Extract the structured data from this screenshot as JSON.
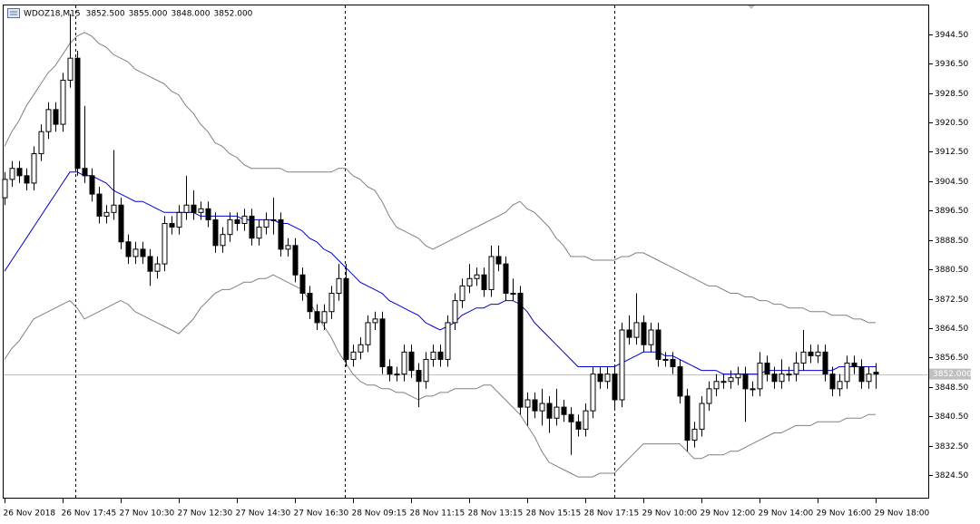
{
  "chart_data": {
    "type": "candlestick",
    "title": "WDOZ18,M15",
    "header_labels": [
      "3852.500",
      "3855.000",
      "3848.000",
      "3852.000"
    ],
    "up_color": "#ffffff",
    "down_color": "#000000",
    "categories": [
      "26 Nov 2018",
      null,
      null,
      null,
      null,
      null,
      null,
      null,
      "26 Nov 17:45",
      null,
      null,
      null,
      null,
      null,
      null,
      null,
      "27 Nov 10:30",
      null,
      null,
      null,
      null,
      null,
      null,
      null,
      "27 Nov 12:30",
      null,
      null,
      null,
      null,
      null,
      null,
      null,
      "27 Nov 14:30",
      null,
      null,
      null,
      null,
      null,
      null,
      null,
      "27 Nov 16:30",
      null,
      null,
      null,
      null,
      null,
      null,
      null,
      "28 Nov 09:15",
      null,
      null,
      null,
      null,
      null,
      null,
      null,
      "28 Nov 11:15",
      null,
      null,
      null,
      null,
      null,
      null,
      null,
      "28 Nov 13:15",
      null,
      null,
      null,
      null,
      null,
      null,
      null,
      "28 Nov 15:15",
      null,
      null,
      null,
      null,
      null,
      null,
      null,
      "28 Nov 17:15",
      null,
      null,
      null,
      null,
      null,
      null,
      null,
      "29 Nov 10:00",
      null,
      null,
      null,
      null,
      null,
      null,
      null,
      "29 Nov 12:00",
      null,
      null,
      null,
      null,
      null,
      null,
      null,
      "29 Nov 14:00",
      null,
      null,
      null,
      null,
      null,
      null,
      null,
      "29 Nov 16:00",
      null,
      null,
      null,
      null,
      null,
      null,
      null,
      "29 Nov 18:00"
    ],
    "open": [
      3900,
      3905,
      3908,
      3906,
      3904,
      3912,
      3918,
      3924,
      3920,
      3932,
      3938,
      3908,
      3906,
      3901,
      3895,
      3896,
      3898,
      3888,
      3884,
      3886,
      3884,
      3880,
      3882,
      3893,
      3892,
      3896,
      3898,
      3896,
      3897,
      3894,
      3887,
      3890,
      3894,
      3893,
      3895,
      3889,
      3892,
      3894,
      3894,
      3886,
      3887,
      3879,
      3874,
      3869,
      3866,
      3869,
      3874,
      3878,
      3856,
      3858,
      3860,
      3866,
      3867,
      3854,
      3852,
      3852,
      3858,
      3853,
      3850,
      3856,
      3858,
      3856,
      3866,
      3872,
      3876,
      3878,
      3879,
      3875,
      3884,
      3882,
      3874,
      3874,
      3843,
      3845,
      3842,
      3844,
      3840,
      3843,
      3841,
      3839,
      3837,
      3842,
      3852,
      3850,
      3852,
      3845,
      3864,
      3862,
      3866,
      3860,
      3864,
      3856,
      3856,
      3854,
      3846,
      3834,
      3837,
      3844,
      3848,
      3850,
      3850,
      3851,
      3852,
      3848,
      3848,
      3855,
      3852,
      3850,
      3852,
      3852,
      3855,
      3858,
      3857,
      3858,
      3852,
      3848,
      3850,
      3855,
      3854,
      3850,
      3852.5
    ],
    "high": [
      3907,
      3910,
      3910,
      3908,
      3914,
      3920,
      3926,
      3926,
      3934,
      3950,
      3940,
      3925,
      3908,
      3903,
      3898,
      3913,
      3900,
      3890,
      3888,
      3888,
      3886,
      3884,
      3895,
      3895,
      3898,
      3906,
      3902,
      3899,
      3899,
      3896,
      3892,
      3896,
      3896,
      3897,
      3897,
      3894,
      3896,
      3900,
      3896,
      3889,
      3889,
      3881,
      3876,
      3871,
      3871,
      3876,
      3882,
      3882,
      3860,
      3862,
      3868,
      3869,
      3869,
      3856,
      3854,
      3860,
      3860,
      3855,
      3858,
      3860,
      3860,
      3868,
      3874,
      3878,
      3882,
      3881,
      3881,
      3887,
      3887,
      3884,
      3878,
      3876,
      3847,
      3847,
      3848,
      3846,
      3848,
      3845,
      3843,
      3841,
      3844,
      3854,
      3854,
      3854,
      3854,
      3866,
      3868,
      3874,
      3868,
      3866,
      3866,
      3858,
      3858,
      3856,
      3848,
      3839,
      3846,
      3850,
      3852,
      3852,
      3853,
      3854,
      3854,
      3850,
      3858,
      3857,
      3854,
      3856,
      3854,
      3858,
      3864,
      3860,
      3860,
      3860,
      3854,
      3852,
      3857,
      3857,
      3856,
      3854,
      3855
    ],
    "low": [
      3898,
      3903,
      3904,
      3902,
      3902,
      3910,
      3916,
      3918,
      3918,
      3930,
      3906,
      3904,
      3899,
      3893,
      3893,
      3894,
      3886,
      3882,
      3882,
      3882,
      3876,
      3878,
      3880,
      3890,
      3890,
      3894,
      3894,
      3894,
      3892,
      3885,
      3885,
      3888,
      3891,
      3891,
      3887,
      3887,
      3890,
      3890,
      3884,
      3884,
      3877,
      3872,
      3867,
      3864,
      3864,
      3867,
      3872,
      3854,
      3854,
      3856,
      3858,
      3864,
      3852,
      3850,
      3850,
      3850,
      3851,
      3843,
      3848,
      3854,
      3854,
      3854,
      3864,
      3870,
      3874,
      3876,
      3873,
      3873,
      3880,
      3872,
      3872,
      3841,
      3838,
      3840,
      3838,
      3836,
      3838,
      3839,
      3830,
      3835,
      3835,
      3840,
      3848,
      3848,
      3842,
      3843,
      3860,
      3860,
      3858,
      3858,
      3854,
      3854,
      3852,
      3844,
      3831,
      3832,
      3835,
      3842,
      3846,
      3848,
      3848,
      3849,
      3839,
      3846,
      3846,
      3850,
      3848,
      3848,
      3850,
      3850,
      3853,
      3855,
      3855,
      3850,
      3846,
      3846,
      3848,
      3852,
      3848,
      3848,
      3848
    ],
    "close": [
      3905,
      3908,
      3906,
      3904,
      3912,
      3918,
      3924,
      3920,
      3932,
      3938,
      3908,
      3906,
      3901,
      3895,
      3896,
      3898,
      3888,
      3884,
      3886,
      3884,
      3880,
      3882,
      3893,
      3892,
      3896,
      3898,
      3896,
      3897,
      3894,
      3887,
      3890,
      3894,
      3893,
      3895,
      3889,
      3892,
      3894,
      3894,
      3886,
      3887,
      3879,
      3874,
      3869,
      3866,
      3869,
      3874,
      3878,
      3856,
      3858,
      3860,
      3866,
      3867,
      3854,
      3852,
      3852,
      3858,
      3853,
      3850,
      3856,
      3858,
      3856,
      3866,
      3872,
      3876,
      3878,
      3879,
      3875,
      3884,
      3882,
      3874,
      3874,
      3843,
      3845,
      3842,
      3844,
      3840,
      3843,
      3841,
      3839,
      3837,
      3842,
      3852,
      3850,
      3852,
      3845,
      3864,
      3862,
      3866,
      3860,
      3864,
      3856,
      3856,
      3854,
      3846,
      3834,
      3837,
      3844,
      3848,
      3850,
      3850,
      3851,
      3852,
      3848,
      3848,
      3855,
      3852,
      3850,
      3852,
      3852,
      3855,
      3858,
      3857,
      3858,
      3852,
      3848,
      3850,
      3855,
      3854,
      3850,
      3852,
      3852
    ],
    "indicators": {
      "upper": {
        "color": "#808080",
        "values": [
          3914,
          3918,
          3921,
          3925,
          3928,
          3931,
          3934,
          3936,
          3939,
          3942,
          3944,
          3945,
          3944,
          3942,
          3941,
          3939,
          3938,
          3937,
          3935,
          3934,
          3933,
          3932,
          3931,
          3929,
          3928,
          3925,
          3923,
          3920,
          3918,
          3915,
          3914,
          3912,
          3911,
          3909,
          3908,
          3908,
          3908,
          3908,
          3908,
          3907,
          3907,
          3907,
          3907,
          3907,
          3907,
          3907,
          3908,
          3908,
          3906,
          3905,
          3903,
          3902,
          3899,
          3895,
          3892,
          3891,
          3890,
          3889,
          3887,
          3886,
          3887,
          3888,
          3889,
          3890,
          3891,
          3892,
          3893,
          3894,
          3895,
          3896,
          3898,
          3899,
          3897,
          3896,
          3894,
          3892,
          3889,
          3887,
          3884,
          3884,
          3884,
          3883,
          3883,
          3883,
          3883,
          3884,
          3884,
          3885,
          3885,
          3884,
          3883,
          3882,
          3881,
          3880,
          3879,
          3878,
          3877,
          3876,
          3876,
          3875,
          3874,
          3874,
          3873,
          3873,
          3872,
          3872,
          3871,
          3871,
          3870,
          3870,
          3870,
          3869,
          3869,
          3869,
          3868,
          3868,
          3868,
          3867,
          3867,
          3866,
          3866
        ]
      },
      "middle": {
        "color": "#0000cd",
        "values": [
          3880,
          3883,
          3886,
          3889,
          3892,
          3895,
          3898,
          3901,
          3904,
          3907,
          3907,
          3906,
          3906,
          3905,
          3904,
          3902,
          3901,
          3900,
          3899,
          3899,
          3898,
          3897,
          3896,
          3896,
          3896,
          3896,
          3896,
          3895,
          3895,
          3895,
          3895,
          3895,
          3895,
          3894,
          3894,
          3894,
          3894,
          3894,
          3893,
          3893,
          3892,
          3891,
          3889,
          3888,
          3886,
          3885,
          3883,
          3881,
          3879,
          3877,
          3876,
          3875,
          3874,
          3872,
          3871,
          3870,
          3869,
          3868,
          3866,
          3865,
          3864,
          3865,
          3866,
          3868,
          3869,
          3870,
          3870,
          3871,
          3871,
          3872,
          3872,
          3871,
          3869,
          3866,
          3864,
          3862,
          3860,
          3858,
          3856,
          3854,
          3854,
          3854,
          3854,
          3854,
          3854,
          3855,
          3856,
          3857,
          3858,
          3858,
          3858,
          3857,
          3857,
          3856,
          3855,
          3854,
          3853,
          3853,
          3853,
          3852,
          3852,
          3852,
          3852,
          3852,
          3852,
          3853,
          3853,
          3853,
          3853,
          3853,
          3853,
          3853,
          3853,
          3853,
          3853,
          3854,
          3854,
          3854,
          3854,
          3854,
          3854
        ]
      },
      "lower": {
        "color": "#808080",
        "values": [
          3856,
          3859,
          3861,
          3864,
          3867,
          3868,
          3869,
          3870,
          3871,
          3872,
          3870,
          3867,
          3868,
          3869,
          3870,
          3871,
          3872,
          3871,
          3869,
          3868,
          3867,
          3866,
          3865,
          3864,
          3863,
          3865,
          3867,
          3870,
          3872,
          3874,
          3875,
          3875,
          3876,
          3877,
          3877,
          3878,
          3878,
          3879,
          3878,
          3877,
          3876,
          3875,
          3872,
          3868,
          3865,
          3862,
          3858,
          3855,
          3852,
          3850,
          3849,
          3849,
          3848,
          3848,
          3847,
          3847,
          3846,
          3845,
          3846,
          3846,
          3847,
          3847,
          3848,
          3848,
          3848,
          3848,
          3849,
          3849,
          3847,
          3845,
          3843,
          3841,
          3838,
          3835,
          3831,
          3828,
          3827,
          3826,
          3825,
          3824,
          3824,
          3824,
          3825,
          3825,
          3825,
          3827,
          3829,
          3831,
          3833,
          3833,
          3833,
          3833,
          3833,
          3833,
          3831,
          3829,
          3829,
          3830,
          3830,
          3830,
          3831,
          3831,
          3832,
          3833,
          3834,
          3835,
          3836,
          3836,
          3837,
          3838,
          3838,
          3838,
          3839,
          3839,
          3839,
          3839,
          3840,
          3840,
          3840,
          3841,
          3841
        ]
      }
    },
    "last_price": {
      "value": 3852,
      "label": "3852.000"
    },
    "ylim": [
      3818.1,
      3952.6
    ],
    "yticks": [
      {
        "value": 3944.5,
        "label": "3944.50"
      },
      {
        "value": 3936.5,
        "label": "3936.50"
      },
      {
        "value": 3928.5,
        "label": "3928.50"
      },
      {
        "value": 3920.5,
        "label": "3920.50"
      },
      {
        "value": 3912.5,
        "label": "3912.50"
      },
      {
        "value": 3904.5,
        "label": "3904.50"
      },
      {
        "value": 3896.5,
        "label": "3896.50"
      },
      {
        "value": 3888.5,
        "label": "3888.50"
      },
      {
        "value": 3880.5,
        "label": "3880.50"
      },
      {
        "value": 3872.5,
        "label": "3872.50"
      },
      {
        "value": 3864.5,
        "label": "3864.50"
      },
      {
        "value": 3856.5,
        "label": "3856.50"
      },
      {
        "value": 3848.5,
        "label": "3848.50"
      },
      {
        "value": 3840.5,
        "label": "3840.50"
      },
      {
        "value": 3832.5,
        "label": "3832.50"
      },
      {
        "value": 3824.5,
        "label": "3824.50"
      }
    ]
  }
}
